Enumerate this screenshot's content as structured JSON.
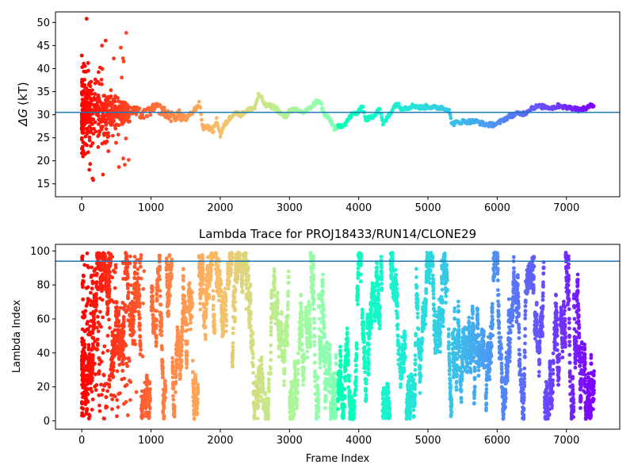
{
  "chart_data": [
    {
      "type": "scatter",
      "title": "",
      "xlabel": "",
      "ylabel": "ΔG (kT)",
      "ylabel_symbol": "ΔG",
      "ylabel_unit": "(kT)",
      "xlim": [
        -380,
        7770
      ],
      "ylim": [
        12.2,
        52.3
      ],
      "xticks": [
        0,
        1000,
        2000,
        3000,
        4000,
        5000,
        6000,
        7000
      ],
      "yticks": [
        15,
        20,
        25,
        30,
        35,
        40,
        45,
        50
      ],
      "reference_line": {
        "y": 30.5,
        "color": "#1f77b4"
      },
      "colormap": "rainbow, colored by frame index (red at frame 0 to purple at the last frame)",
      "grid": false,
      "anchor_points": {
        "x": [
          0,
          100,
          200,
          300,
          400,
          500,
          600,
          700,
          800,
          900,
          1000,
          1100,
          1200,
          1300,
          1400,
          1500,
          1600,
          1700,
          1750,
          1800,
          1900,
          1950,
          2000,
          2050,
          2100,
          2200,
          2300,
          2400,
          2500,
          2550,
          2600,
          2650,
          2700,
          2800,
          2900,
          2950,
          3000,
          3100,
          3200,
          3300,
          3400,
          3450,
          3500,
          3550,
          3600,
          3650,
          3700,
          3800,
          3900,
          4000,
          4050,
          4100,
          4200,
          4300,
          4350,
          4400,
          4500,
          4550,
          4600,
          4700,
          4800,
          4900,
          5000,
          5100,
          5200,
          5300,
          5350,
          5400,
          5500,
          5600,
          5700,
          5800,
          5900,
          6000,
          6100,
          6200,
          6300,
          6400,
          6500,
          6600,
          6700,
          6800,
          6900,
          7000,
          7100,
          7200,
          7300,
          7400
        ],
        "y": [
          33,
          34,
          31,
          32,
          30,
          31,
          29.5,
          31,
          30.5,
          30,
          31,
          31.5,
          30.5,
          29.5,
          30,
          29,
          30.5,
          32.5,
          27,
          27.5,
          26.5,
          29,
          25.5,
          27.5,
          28.5,
          30.5,
          30,
          31,
          31.5,
          34.2,
          33.5,
          32,
          32,
          31.5,
          29.8,
          29.5,
          31,
          31,
          30.5,
          31.5,
          33,
          32.5,
          30,
          29.5,
          28.5,
          27,
          27.3,
          28,
          30,
          30.5,
          32.3,
          29,
          29.5,
          31.5,
          28,
          29,
          31.5,
          32.5,
          31.5,
          31.5,
          32,
          31.5,
          31.8,
          31.5,
          31.6,
          31,
          28,
          28.2,
          28.5,
          28.5,
          28.5,
          28,
          27.8,
          28,
          29,
          29.8,
          30.2,
          30.3,
          31.5,
          31.8,
          31.7,
          31.5,
          32,
          31.5,
          31.5,
          31,
          31.5,
          32.3
        ]
      },
      "x_range": [
        0,
        7400
      ],
      "early_spread": {
        "x_end": 700,
        "y_min": 15.1,
        "y_max": 52
      }
    },
    {
      "type": "scatter",
      "title": "Lambda Trace for PROJ18433/RUN14/CLONE29",
      "xlabel": "Frame Index",
      "ylabel": "Lambda Index",
      "xlim": [
        -380,
        7770
      ],
      "ylim": [
        -4.9,
        103.9
      ],
      "xticks": [
        0,
        1000,
        2000,
        3000,
        4000,
        5000,
        6000,
        7000
      ],
      "yticks": [
        0,
        20,
        40,
        60,
        80,
        100
      ],
      "reference_line": {
        "y": 94,
        "color": "#1f77b4"
      },
      "colormap": "rainbow, colored by frame index (red at frame 0 to purple at the last frame)",
      "grid": false,
      "x_range": [
        0,
        7400
      ],
      "y_range": [
        1,
        99
      ],
      "description": "dense vertical strands of points spanning lambda index 1 to 99 throughout the trajectory"
    }
  ]
}
